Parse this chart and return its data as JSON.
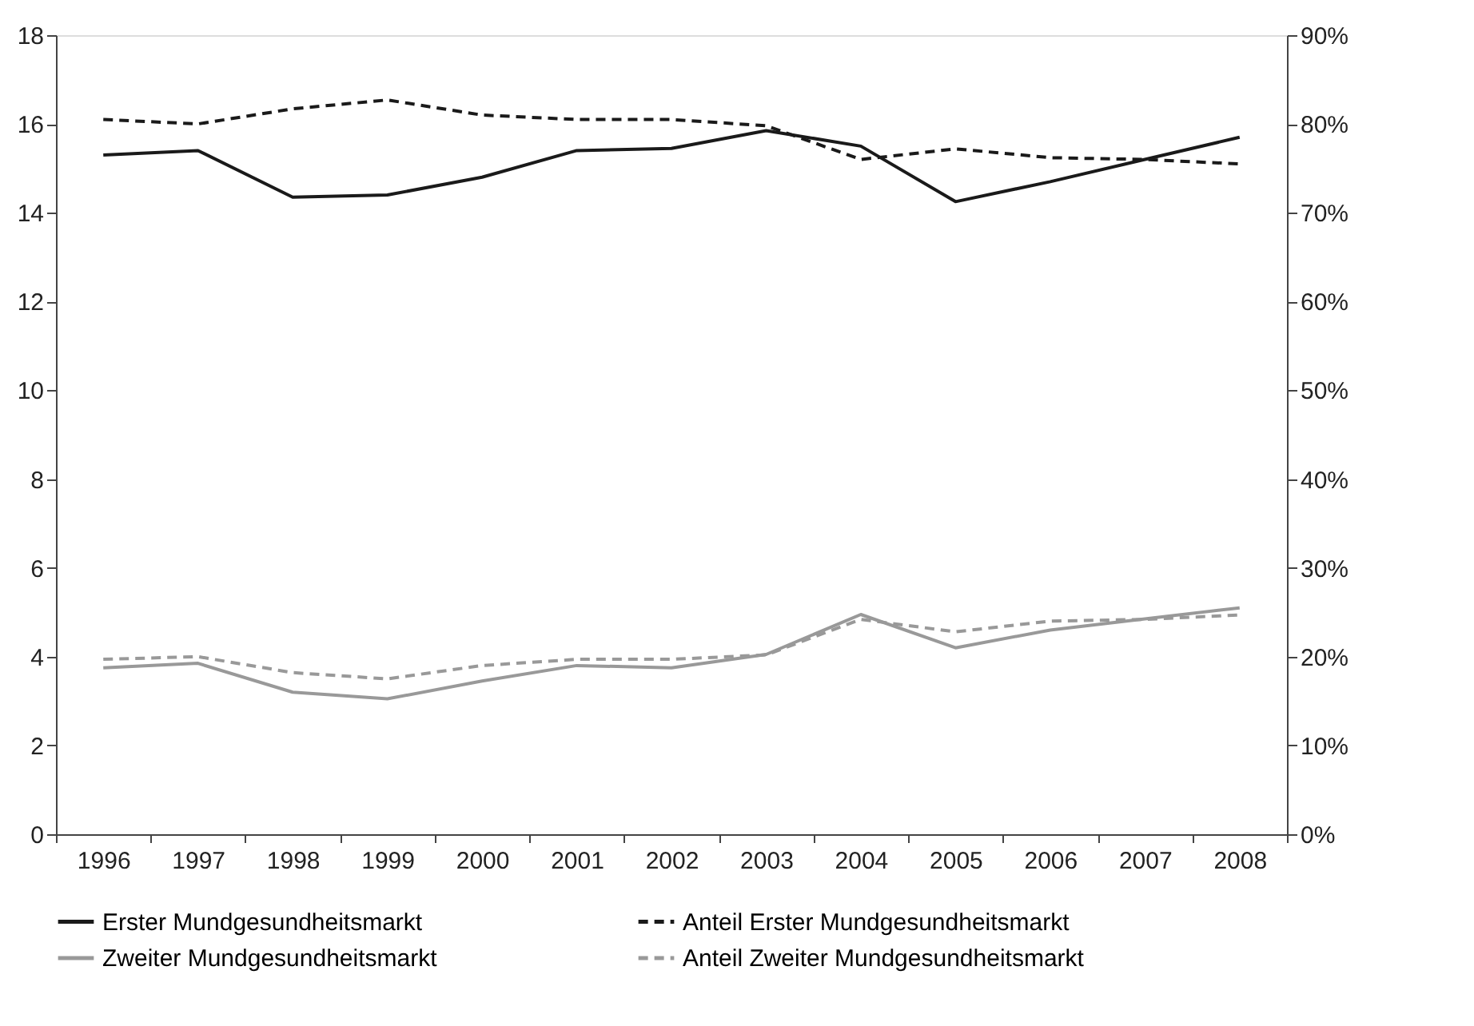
{
  "chart_data": {
    "type": "line",
    "categories": [
      "1996",
      "1997",
      "1998",
      "1999",
      "2000",
      "2001",
      "2002",
      "2003",
      "2004",
      "2005",
      "2006",
      "2007",
      "2008"
    ],
    "series": [
      {
        "name": "Erster Mundgesundheitsmarkt",
        "color": "#1a1a1a",
        "line_style": "solid",
        "values": [
          15.3,
          15.4,
          14.35,
          14.4,
          14.8,
          15.4,
          15.45,
          15.85,
          15.5,
          14.25,
          14.7,
          15.2,
          15.7
        ]
      },
      {
        "name": "Anteil Erster Mundgesundheitsmarkt",
        "color": "#1a1a1a",
        "line_style": "dashed",
        "axis": "y2",
        "values": [
          80.5,
          80,
          81.7,
          82.7,
          81,
          80.5,
          80.5,
          79.8,
          76,
          77.2,
          76.2,
          76,
          75.5
        ]
      },
      {
        "name": "Zweiter Mundgesundheitsmarkt",
        "color": "#999999",
        "line_style": "solid",
        "values": [
          3.75,
          3.85,
          3.2,
          3.05,
          3.45,
          3.8,
          3.75,
          4.05,
          4.95,
          4.2,
          4.6,
          4.85,
          5.1
        ]
      },
      {
        "name": "Anteil Zweiter Mundgesundheitsmarkt",
        "color": "#999999",
        "line_style": "dashed",
        "axis": "y2",
        "values": [
          19.7,
          20,
          18.2,
          17.5,
          19,
          19.7,
          19.7,
          20.2,
          24.2,
          22.8,
          24,
          24.2,
          24.7
        ]
      }
    ],
    "ylim": [
      0,
      18
    ],
    "yticks": [
      0,
      2,
      4,
      6,
      8,
      10,
      12,
      14,
      16,
      18
    ],
    "y2lim": [
      0,
      90
    ],
    "y2ticks": [
      {
        "value": 0,
        "label": "0%"
      },
      {
        "value": 10,
        "label": "10%"
      },
      {
        "value": 20,
        "label": "20%"
      },
      {
        "value": 30,
        "label": "30%"
      },
      {
        "value": 40,
        "label": "40%"
      },
      {
        "value": 50,
        "label": "50%"
      },
      {
        "value": 60,
        "label": "60%"
      },
      {
        "value": 70,
        "label": "70%"
      },
      {
        "value": 80,
        "label": "80%"
      },
      {
        "value": 90,
        "label": "90%"
      }
    ],
    "grid": false,
    "legend": "bottom",
    "marker": "none"
  }
}
